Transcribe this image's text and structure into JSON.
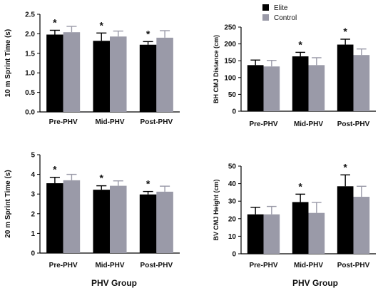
{
  "legend": [
    {
      "label": "Elite",
      "color": "#000000"
    },
    {
      "label": "Control",
      "color": "#9a9aa8"
    }
  ],
  "group_titles": [
    "PHV Group",
    "PHV Group"
  ],
  "chart_data": [
    {
      "type": "bar",
      "panel": "top-left",
      "categories": [
        "Pre-PHV",
        "Mid-PHV",
        "Post-PHV"
      ],
      "ylabel": "10 m Sprint Time (s)",
      "ylim": [
        0,
        2.5
      ],
      "yticks": [
        "0.0",
        "0.5",
        "1.0",
        "1.5",
        "2.0",
        "2.5"
      ],
      "series": [
        {
          "name": "Elite",
          "color": "#000000",
          "values": [
            1.98,
            1.82,
            1.72
          ],
          "errors": [
            0.11,
            0.2,
            0.08
          ]
        },
        {
          "name": "Control",
          "color": "#9a9aa8",
          "values": [
            2.04,
            1.93,
            1.9
          ],
          "errors": [
            0.15,
            0.14,
            0.18
          ]
        }
      ],
      "significance": [
        "*",
        "*",
        "*"
      ]
    },
    {
      "type": "bar",
      "panel": "top-right",
      "categories": [
        "Pre-PHV",
        "Mid-PHV",
        "Post-PHV"
      ],
      "ylabel": "BH CMJ Distance (cm)",
      "ylim": [
        0,
        250
      ],
      "yticks": [
        "0",
        "50",
        "100",
        "150",
        "200",
        "250"
      ],
      "series": [
        {
          "name": "Elite",
          "color": "#000000",
          "values": [
            137,
            163,
            198
          ],
          "errors": [
            15,
            12,
            16
          ]
        },
        {
          "name": "Control",
          "color": "#9a9aa8",
          "values": [
            133,
            137,
            167
          ],
          "errors": [
            18,
            22,
            18
          ]
        }
      ],
      "significance": [
        "",
        "*",
        "*"
      ]
    },
    {
      "type": "bar",
      "panel": "bottom-left",
      "categories": [
        "Pre-PHV",
        "Mid-PHV",
        "Post-PHV"
      ],
      "ylabel": "20 m Sprint Time (s)",
      "ylim": [
        0,
        5
      ],
      "yticks": [
        "0",
        "1",
        "2",
        "3",
        "4",
        "5"
      ],
      "series": [
        {
          "name": "Elite",
          "color": "#000000",
          "values": [
            3.55,
            3.22,
            2.98
          ],
          "errors": [
            0.3,
            0.2,
            0.15
          ]
        },
        {
          "name": "Control",
          "color": "#9a9aa8",
          "values": [
            3.7,
            3.42,
            3.12
          ],
          "errors": [
            0.3,
            0.25,
            0.28
          ]
        }
      ],
      "significance": [
        "*",
        "*",
        "*"
      ]
    },
    {
      "type": "bar",
      "panel": "bottom-right",
      "categories": [
        "Pre-PHV",
        "Mid-PHV",
        "Post-PHV"
      ],
      "ylabel": "BV CMJ Height (cm)",
      "ylim": [
        0,
        50
      ],
      "yticks": [
        "0",
        "10",
        "20",
        "30",
        "40",
        "50"
      ],
      "series": [
        {
          "name": "Elite",
          "color": "#000000",
          "values": [
            22.5,
            29.5,
            38.5
          ],
          "errors": [
            4,
            4.5,
            6.5
          ]
        },
        {
          "name": "Control",
          "color": "#9a9aa8",
          "values": [
            22.5,
            23.3,
            32.5
          ],
          "errors": [
            4.5,
            6,
            6
          ]
        }
      ],
      "significance": [
        "",
        "*",
        "*"
      ]
    }
  ]
}
